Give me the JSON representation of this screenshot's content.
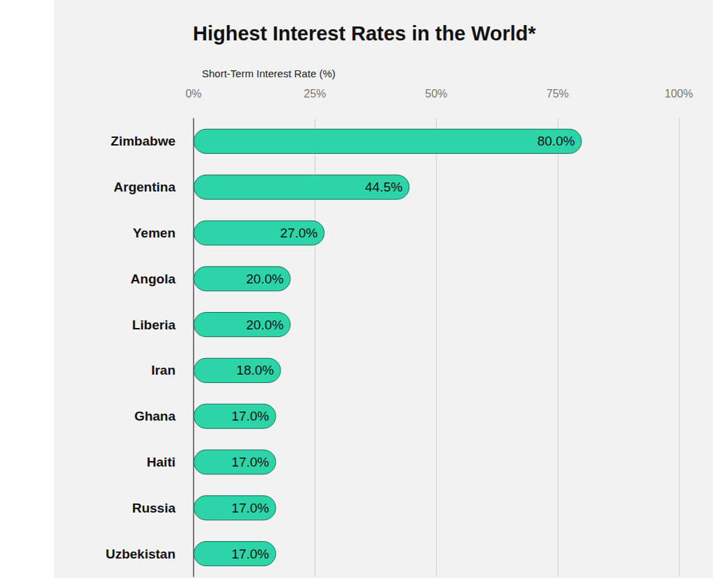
{
  "chart_data": {
    "type": "bar",
    "title": "Highest Interest Rates in the World*",
    "xlabel": "Short-Term Interest Rate (%)",
    "orientation": "horizontal",
    "categories": [
      "Zimbabwe",
      "Argentina",
      "Yemen",
      "Angola",
      "Liberia",
      "Iran",
      "Ghana",
      "Haiti",
      "Russia",
      "Uzbekistan"
    ],
    "values": [
      80.0,
      44.5,
      27.0,
      20.0,
      20.0,
      18.0,
      17.0,
      17.0,
      17.0,
      17.0
    ],
    "value_labels": [
      "80.0%",
      "44.5%",
      "27.0%",
      "20.0%",
      "20.0%",
      "18.0%",
      "17.0%",
      "17.0%",
      "17.0%",
      "17.0%"
    ],
    "color": "#2dd4a7",
    "xlim": [
      0,
      100
    ],
    "xticks": [
      {
        "value": 0,
        "label": "0%"
      },
      {
        "value": 25,
        "label": "25%"
      },
      {
        "value": 50,
        "label": "50%"
      },
      {
        "value": 75,
        "label": "75%"
      },
      {
        "value": 100,
        "label": "100%"
      }
    ],
    "grid": true,
    "data_labels": true
  }
}
